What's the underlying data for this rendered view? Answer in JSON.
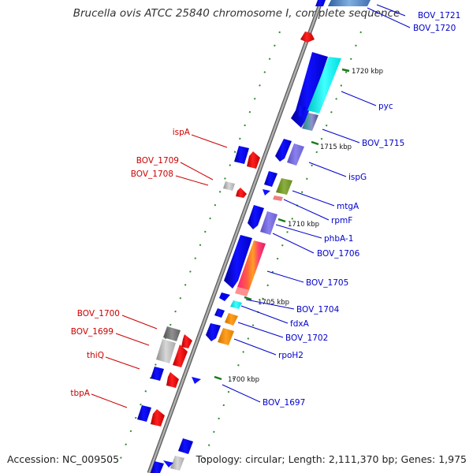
{
  "title": "Brucella ovis ATCC 25840 chromosome I, complete sequence",
  "footer": {
    "accession": "Accession: NC_009505",
    "summary": "Topology: circular; Length: 2,111,370 bp; Genes: 1,975"
  },
  "colors": {
    "backbone": "#8c8c8c",
    "dots": "#2e8b2e",
    "forward_label": "#0000cc",
    "reverse_label": "#cc0000",
    "blue_gene": "#0000ee",
    "red_gene": "#ee0000"
  },
  "ruler": [
    "1720 kbp",
    "1715 kbp",
    "1710 kbp",
    "1705 kbp",
    "1700 kbp"
  ],
  "forward_genes": [
    "BOV_1721",
    "BOV_1720",
    "pyc",
    "BOV_1715",
    "ispG",
    "mtgA",
    "rpmF",
    "phbA-1",
    "BOV_1706",
    "BOV_1705",
    "BOV_1704",
    "fdxA",
    "BOV_1702",
    "rpoH2",
    "BOV_1697"
  ],
  "reverse_genes": [
    "ispA",
    "BOV_1709",
    "BOV_1708",
    "BOV_1700",
    "BOV_1699",
    "thiQ",
    "tbpA"
  ]
}
